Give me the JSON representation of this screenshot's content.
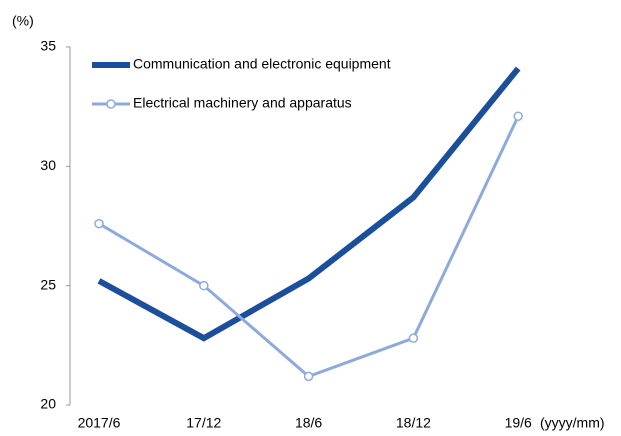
{
  "chart_data": {
    "type": "line",
    "y_label": "(%)",
    "x_label": "(yyyy/mm)",
    "categories": [
      "2017/6",
      "17/12",
      "18/6",
      "18/12",
      "19/6"
    ],
    "series": [
      {
        "name": "Communication and electronic equipment",
        "color": "#1b4f9c",
        "values": [
          25.2,
          22.8,
          25.3,
          28.7,
          34.1
        ]
      },
      {
        "name": "Electrical machinery and apparatus",
        "color": "#8eaadc",
        "values": [
          27.6,
          25.0,
          21.2,
          22.8,
          32.1
        ]
      }
    ],
    "ylim": [
      20,
      35
    ],
    "yticks": [
      20,
      25,
      30,
      35
    ],
    "grid": false
  }
}
